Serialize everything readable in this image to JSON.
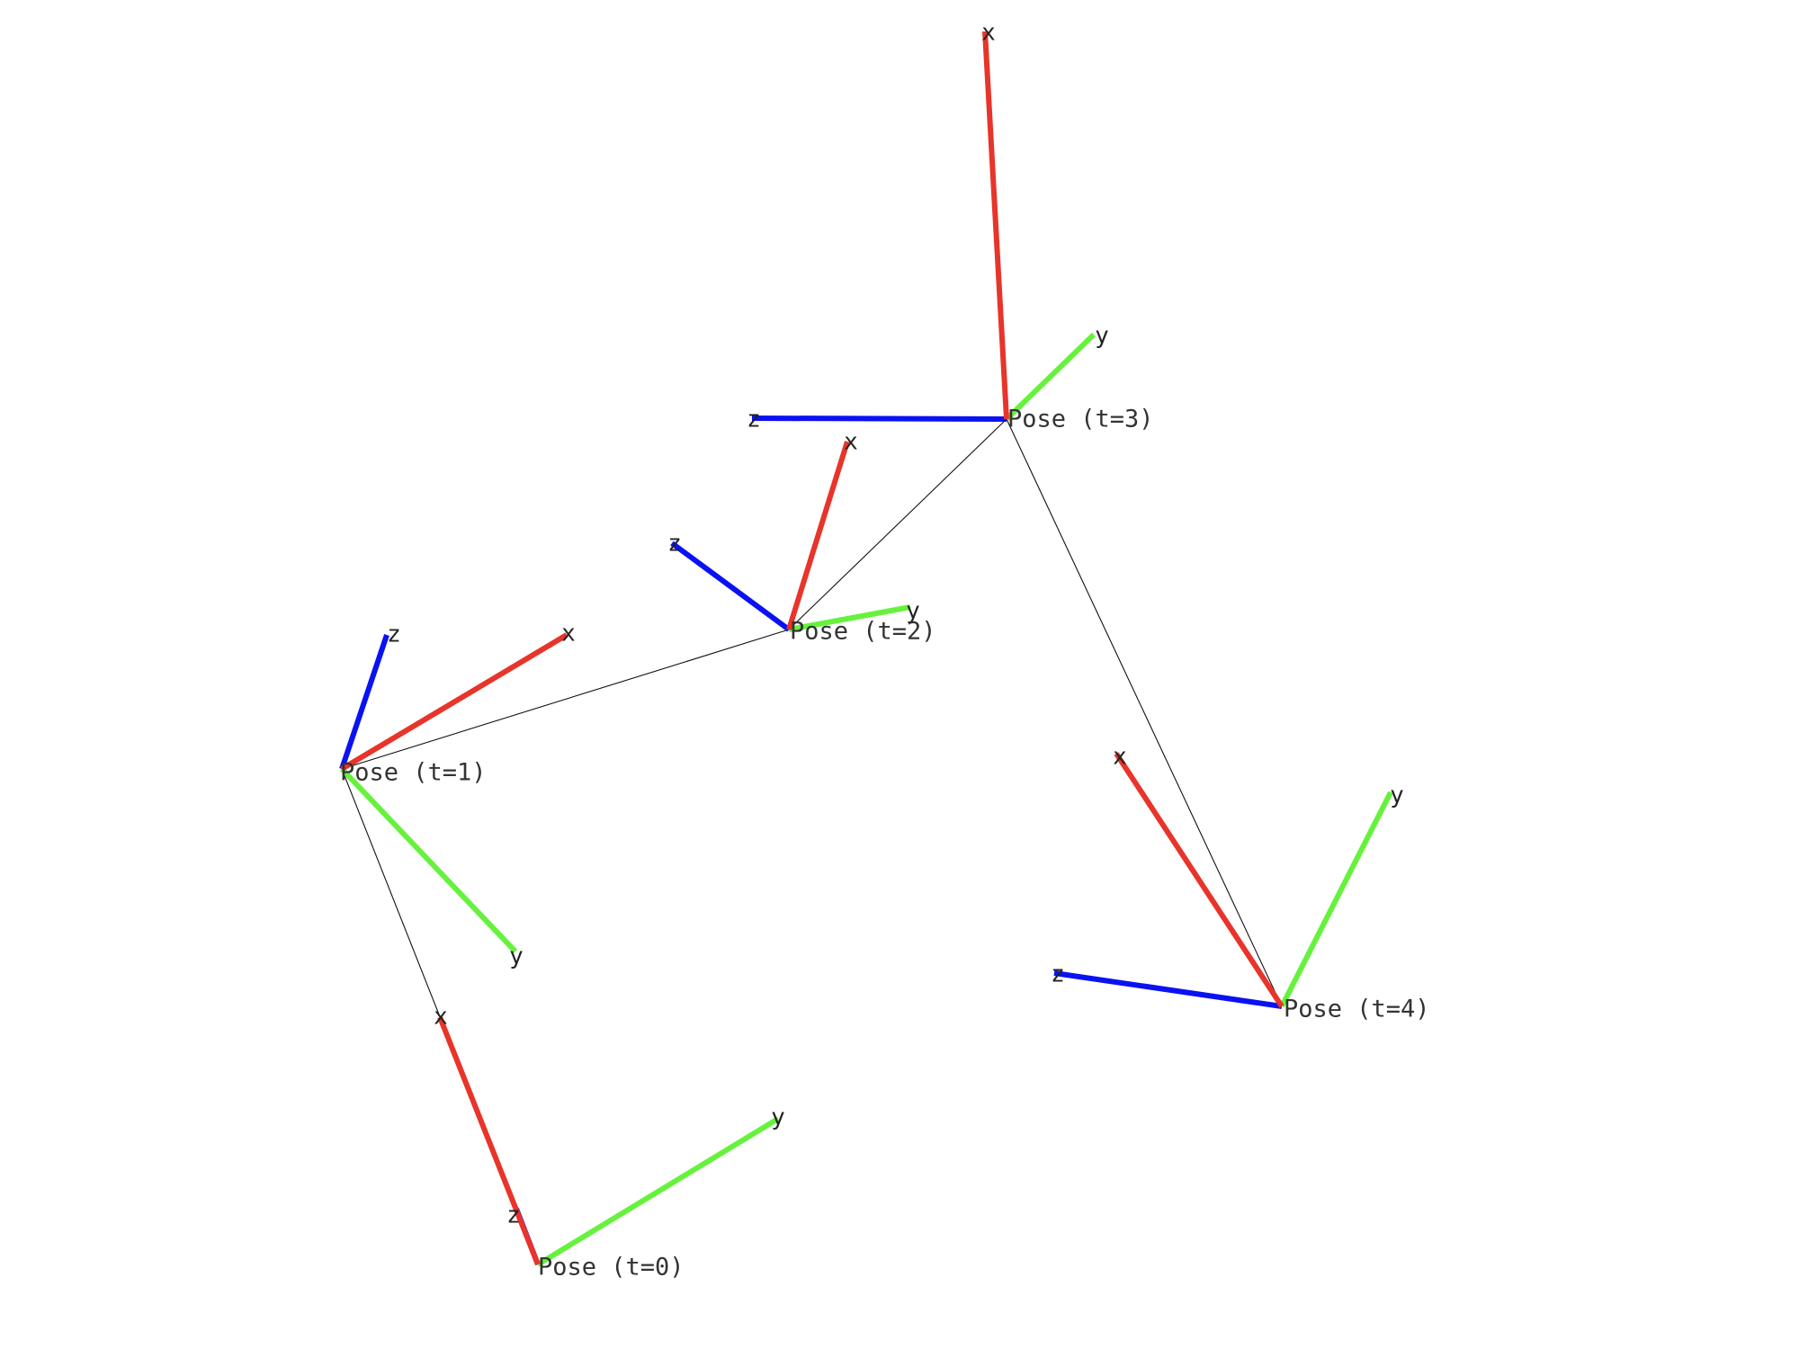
{
  "colors": {
    "x_axis": "#e8342a",
    "y_axis": "#66f23c",
    "z_axis": "#0a12f2",
    "trajectory": "#111111",
    "background": "#ffffff"
  },
  "axis_labels": {
    "x": "x",
    "y": "y",
    "z": "z"
  },
  "poses": [
    {
      "id": "t0",
      "label": "Pose (t=0)"
    },
    {
      "id": "t1",
      "label": "Pose (t=1)"
    },
    {
      "id": "t2",
      "label": "Pose (t=2)"
    },
    {
      "id": "t3",
      "label": "Pose (t=3)"
    },
    {
      "id": "t4",
      "label": "Pose (t=4)"
    }
  ],
  "trajectory_order": [
    "t0",
    "t1",
    "t2",
    "t3",
    "t4"
  ]
}
